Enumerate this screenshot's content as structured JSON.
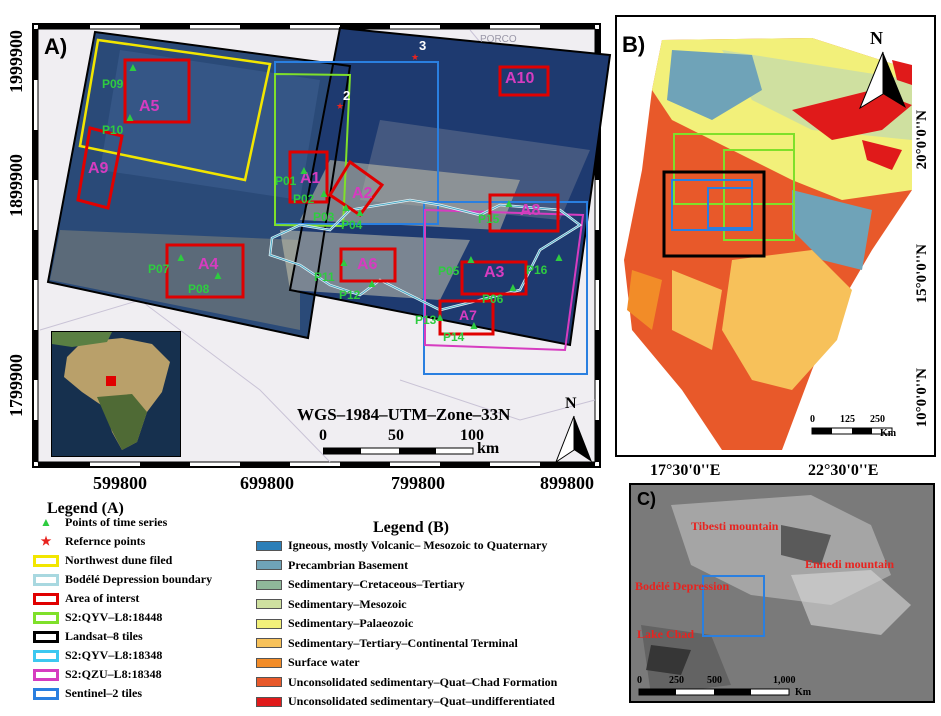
{
  "panel_a": {
    "label": "A)",
    "y_ticks": [
      "1999900",
      "1899900",
      "1799900"
    ],
    "x_ticks": [
      "599800",
      "699800",
      "799800",
      "899800"
    ],
    "projection": "WGS–1984–UTM–Zone–33N",
    "scale": {
      "ticks": [
        "0",
        "50",
        "100"
      ],
      "unit": "km"
    },
    "north": "N",
    "ref_numbers": [
      "3",
      "2"
    ],
    "place_name": "PORCO",
    "areas": [
      "A1",
      "A2",
      "A3",
      "A4",
      "A5",
      "A6",
      "A7",
      "A8",
      "A9",
      "A10"
    ],
    "points": [
      "P01",
      "P02",
      "P03",
      "P04",
      "P05",
      "P06",
      "P07",
      "P08",
      "P09",
      "P10",
      "P11",
      "P12",
      "P13",
      "P14",
      "P15",
      "P16"
    ]
  },
  "panel_b": {
    "label": "B)",
    "north": "N",
    "lat_labels": [
      "20°0'0''N",
      "15°0'0''N",
      "10°0'0''N"
    ],
    "lon_labels": [
      "17°30'0''E",
      "22°30'0''E"
    ],
    "scale": {
      "ticks": [
        "0",
        "125",
        "250"
      ],
      "unit": "Km"
    }
  },
  "panel_c": {
    "label": "C)",
    "places": [
      "Tibesti mountain",
      "Ennedi mountain",
      "Bodélé Depression",
      "Lake Chad"
    ],
    "scale": {
      "ticks": [
        "0",
        "250",
        "500",
        "1,000"
      ],
      "unit": "Km"
    }
  },
  "legend_a": {
    "title": "Legend (A)",
    "items": [
      {
        "label": "Points of time series",
        "symbol": "triangle",
        "color": "#2ecc40"
      },
      {
        "label": "Refernce points",
        "symbol": "star",
        "color": "#e8231f"
      },
      {
        "label": "Northwest dune filed",
        "symbol": "box",
        "color": "#f2e600"
      },
      {
        "label": "Bodélé Depression  boundary",
        "symbol": "box",
        "color": "#a8d8e0"
      },
      {
        "label": "Area of interst",
        "symbol": "box",
        "color": "#e00000"
      },
      {
        "label": "S2:QYV–L8:18448",
        "symbol": "box",
        "color": "#7fe02a"
      },
      {
        "label": "Landsat–8 tiles",
        "symbol": "box",
        "color": "#000000"
      },
      {
        "label": "S2:QYV–L8:18348",
        "symbol": "box",
        "color": "#3cc8f0"
      },
      {
        "label": "S2:QZU–L8:18348",
        "symbol": "box",
        "color": "#d63cc0"
      },
      {
        "label": "Sentinel–2 tiles",
        "symbol": "box",
        "color": "#2a7fe0"
      }
    ]
  },
  "legend_b": {
    "title": "Legend (B)",
    "items": [
      {
        "label": "Igneous, mostly Volcanic– Mesozoic to Quaternary",
        "color": "#2c7fb8"
      },
      {
        "label": "Precambrian Basement",
        "color": "#6fa3b8"
      },
      {
        "label": "Sedimentary–Cretaceous–Tertiary",
        "color": "#8fb89a"
      },
      {
        "label": "Sedimentary–Mesozoic",
        "color": "#cfe0a0"
      },
      {
        "label": "Sedimentary–Palaeozoic",
        "color": "#f2f07a"
      },
      {
        "label": "Sedimentary–Tertiary–Continental Terminal",
        "color": "#f7c15a"
      },
      {
        "label": "Surface water",
        "color": "#f28c28"
      },
      {
        "label": "Unconsolidated sedimentary–Quat–Chad Formation",
        "color": "#e8592a"
      },
      {
        "label": "Unconsolidated sedimentary–Quat–undifferentiated",
        "color": "#e01a1a"
      }
    ]
  }
}
